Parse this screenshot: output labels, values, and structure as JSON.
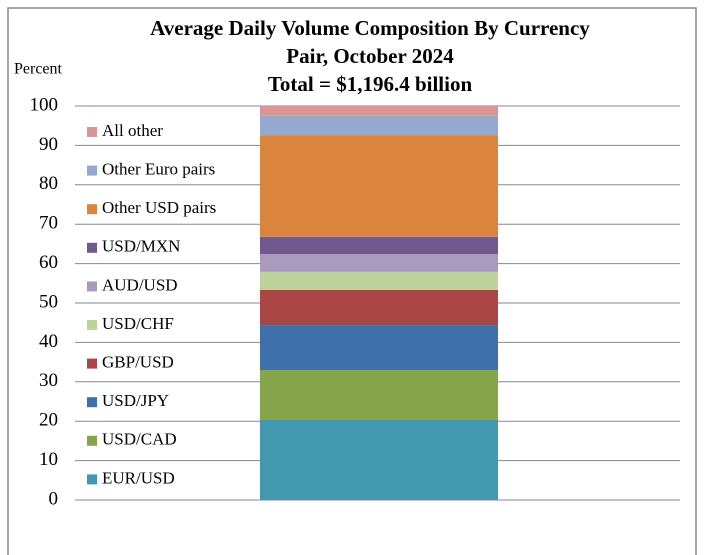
{
  "chart_data": {
    "type": "stacked_bar",
    "title": [
      "Average Daily Volume Composition By Currency",
      "Pair, October 2024"
    ],
    "subtitle": "Total = $1,196.4 billion",
    "y_label": "Percent",
    "categories": [
      null
    ],
    "series": [
      {
        "name": "EUR/USD",
        "color": "#4198af",
        "values": [
          20.3
        ]
      },
      {
        "name": "USD/CAD",
        "color": "#86a44a",
        "values": [
          12.7
        ]
      },
      {
        "name": "USD/JPY",
        "color": "#3f6faa",
        "values": [
          11.4
        ]
      },
      {
        "name": "GBP/USD",
        "color": "#aa4643",
        "values": [
          8.9
        ]
      },
      {
        "name": "USD/CHF",
        "color": "#bdd39b",
        "values": [
          4.6
        ]
      },
      {
        "name": "AUD/USD",
        "color": "#a99bbd",
        "values": [
          4.5
        ]
      },
      {
        "name": "USD/MXN",
        "color": "#71588f",
        "values": [
          4.4
        ]
      },
      {
        "name": "Other USD pairs",
        "color": "#db843d",
        "values": [
          25.8
        ]
      },
      {
        "name": "Other Euro pairs",
        "color": "#93a9cf",
        "values": [
          4.9
        ]
      },
      {
        "name": "All other",
        "color": "#d99694",
        "values": [
          2.5
        ]
      }
    ],
    "ylim": [
      0,
      100
    ],
    "yticks": [
      0,
      10,
      20,
      30,
      40,
      50,
      60,
      70,
      80,
      90,
      100
    ],
    "grid": true,
    "legend": "left"
  }
}
